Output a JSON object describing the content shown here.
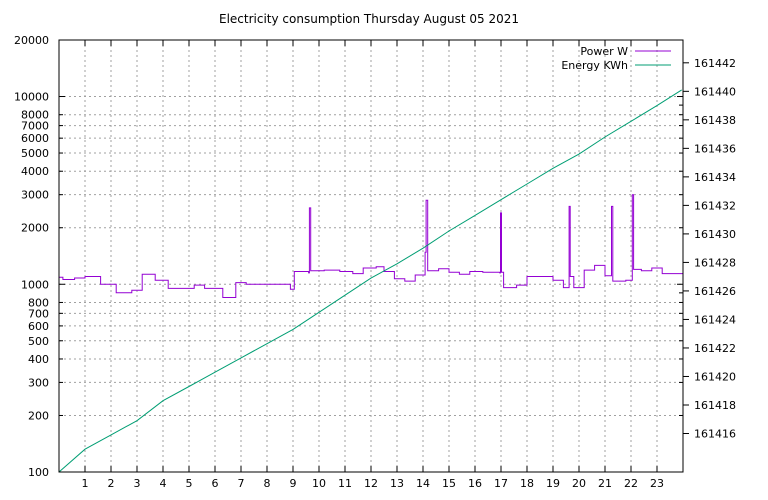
{
  "chart_data": {
    "type": "line",
    "title": "Electricity consumption Thursday August 05 2021",
    "x": {
      "range": [
        0,
        24
      ],
      "ticks": [
        1,
        2,
        3,
        4,
        5,
        6,
        7,
        8,
        9,
        10,
        11,
        12,
        13,
        14,
        15,
        16,
        17,
        18,
        19,
        20,
        21,
        22,
        23
      ],
      "tick_labels": [
        "1",
        "2",
        "3",
        "4",
        "5",
        "6",
        "7",
        "8",
        "9",
        "10",
        "11",
        "12",
        "13",
        "14",
        "15",
        "16",
        "17",
        "18",
        "19",
        "20",
        "21",
        "22",
        "23"
      ]
    },
    "y_left": {
      "scale": "log",
      "range": [
        100,
        20000
      ],
      "ticks": [
        100,
        200,
        300,
        400,
        500,
        600,
        700,
        800,
        1000,
        2000,
        3000,
        4000,
        5000,
        6000,
        7000,
        8000,
        10000,
        20000
      ],
      "tick_labels": [
        "100",
        "200",
        "300",
        "400",
        "500",
        "600",
        "700",
        "800",
        "1000",
        "2000",
        "3000",
        "4000",
        "5000",
        "6000",
        "7000",
        "8000",
        "10000",
        "20000"
      ],
      "grid_values": [
        200,
        300,
        400,
        500,
        600,
        700,
        800,
        1000,
        2000,
        3000,
        4000,
        5000,
        6000,
        7000,
        8000,
        10000
      ]
    },
    "y_right": {
      "scale": "linear",
      "range": [
        161413.3,
        161443.6
      ],
      "ticks": [
        161416,
        161418,
        161420,
        161422,
        161424,
        161426,
        161428,
        161430,
        161432,
        161434,
        161436,
        161438,
        161440,
        161442
      ],
      "tick_labels": [
        "161416",
        "161418",
        "161420",
        "161422",
        "161424",
        "161426",
        "161428",
        "161430",
        "161432",
        "161434",
        "161436",
        "161438",
        "161440",
        "161442"
      ]
    },
    "grid": true,
    "legend_position": "top-right",
    "series": [
      {
        "name": "Power W",
        "axis": "left",
        "color": "#9400d3",
        "step": true,
        "points": [
          [
            0.0,
            1090
          ],
          [
            0.15,
            1060
          ],
          [
            0.6,
            1080
          ],
          [
            1.0,
            1100
          ],
          [
            1.6,
            1000
          ],
          [
            2.2,
            900
          ],
          [
            2.8,
            930
          ],
          [
            3.2,
            1130
          ],
          [
            3.7,
            1050
          ],
          [
            4.2,
            950
          ],
          [
            5.2,
            990
          ],
          [
            5.6,
            950
          ],
          [
            6.3,
            850
          ],
          [
            6.8,
            1020
          ],
          [
            7.2,
            1000
          ],
          [
            8.9,
            940
          ],
          [
            9.05,
            1170
          ],
          [
            9.6,
            1150
          ],
          [
            9.63,
            2550
          ],
          [
            9.68,
            1180
          ],
          [
            10.2,
            1190
          ],
          [
            10.8,
            1170
          ],
          [
            11.3,
            1140
          ],
          [
            11.7,
            1220
          ],
          [
            12.2,
            1240
          ],
          [
            12.5,
            1170
          ],
          [
            12.9,
            1070
          ],
          [
            13.3,
            1040
          ],
          [
            13.7,
            1120
          ],
          [
            14.08,
            1480
          ],
          [
            14.12,
            2800
          ],
          [
            14.18,
            1180
          ],
          [
            14.6,
            1210
          ],
          [
            15.0,
            1160
          ],
          [
            15.4,
            1130
          ],
          [
            15.8,
            1170
          ],
          [
            16.3,
            1160
          ],
          [
            16.95,
            1150
          ],
          [
            16.98,
            2400
          ],
          [
            17.02,
            1160
          ],
          [
            17.1,
            960
          ],
          [
            17.6,
            990
          ],
          [
            18.0,
            1100
          ],
          [
            19.0,
            1050
          ],
          [
            19.4,
            960
          ],
          [
            19.62,
            2600
          ],
          [
            19.66,
            1100
          ],
          [
            19.8,
            960
          ],
          [
            20.2,
            1190
          ],
          [
            20.6,
            1260
          ],
          [
            21.0,
            1110
          ],
          [
            21.25,
            2600
          ],
          [
            21.3,
            1040
          ],
          [
            21.8,
            1050
          ],
          [
            22.05,
            3000
          ],
          [
            22.1,
            1200
          ],
          [
            22.4,
            1180
          ],
          [
            22.8,
            1220
          ],
          [
            23.2,
            1140
          ],
          [
            23.7,
            1140
          ]
        ]
      },
      {
        "name": "Energy KWh",
        "axis": "right",
        "color": "#009e73",
        "step": false,
        "points": [
          [
            0.0,
            161413.3
          ],
          [
            1.0,
            161414.9
          ],
          [
            2.0,
            161415.9
          ],
          [
            3.0,
            161416.9
          ],
          [
            4.0,
            161418.3
          ],
          [
            5.0,
            161419.3
          ],
          [
            6.0,
            161420.3
          ],
          [
            7.0,
            161421.3
          ],
          [
            8.0,
            161422.3
          ],
          [
            9.0,
            161423.3
          ],
          [
            10.0,
            161424.5
          ],
          [
            11.0,
            161425.7
          ],
          [
            12.0,
            161426.9
          ],
          [
            13.0,
            161427.9
          ],
          [
            14.0,
            161429.0
          ],
          [
            15.0,
            161430.2
          ],
          [
            16.0,
            161431.3
          ],
          [
            17.0,
            161432.4
          ],
          [
            18.0,
            161433.5
          ],
          [
            19.0,
            161434.6
          ],
          [
            20.0,
            161435.6
          ],
          [
            21.0,
            161436.8
          ],
          [
            22.0,
            161437.9
          ],
          [
            23.0,
            161439.0
          ],
          [
            23.95,
            161440.1
          ]
        ]
      }
    ]
  }
}
